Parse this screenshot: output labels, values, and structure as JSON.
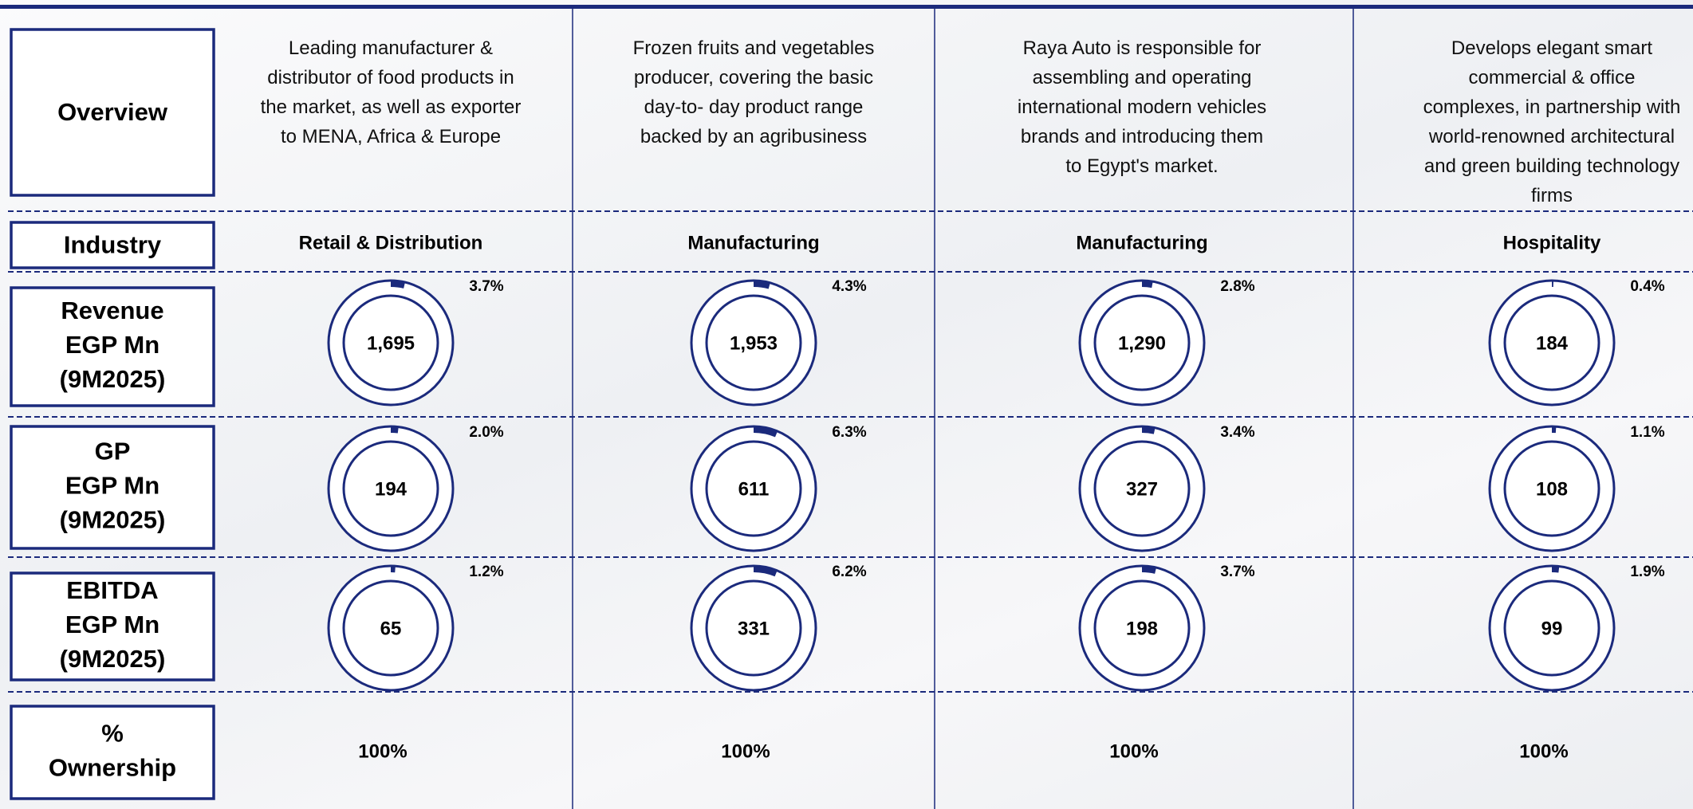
{
  "row_labels": {
    "overview": "Overview",
    "industry": "Industry",
    "revenue": [
      "Revenue",
      "EGP Mn",
      "(9M2025)"
    ],
    "gp": [
      "GP",
      "EGP Mn",
      "(9M2025)"
    ],
    "ebitda": [
      "EBITDA",
      "EGP Mn",
      "(9M2025)"
    ],
    "ownership": [
      "%",
      "Ownership"
    ]
  },
  "columns": [
    {
      "overview": "Leading manufacturer & distributor of food products in the market, as well as exporter to MENA, Africa & Europe",
      "industry": "Retail & Distribution",
      "revenue": {
        "value": "1,695",
        "share": 3.7,
        "share_label": "3.7%"
      },
      "gp": {
        "value": "194",
        "share": 2.0,
        "share_label": "2.0%"
      },
      "ebitda": {
        "value": "65",
        "share": 1.2,
        "share_label": "1.2%"
      },
      "ownership": "100%"
    },
    {
      "overview": "Frozen fruits and  vegetables producer,  covering the basic day-to-  day product range backed  by an agribusiness",
      "industry": "Manufacturing",
      "revenue": {
        "value": "1,953",
        "share": 4.3,
        "share_label": "4.3%"
      },
      "gp": {
        "value": "611",
        "share": 6.3,
        "share_label": "6.3%"
      },
      "ebitda": {
        "value": "331",
        "share": 6.2,
        "share_label": "6.2%"
      },
      "ownership": "100%"
    },
    {
      "overview": "Raya Auto is responsible for assembling and operating international modern vehicles brands and introducing them to Egypt's market.",
      "industry": "Manufacturing",
      "revenue": {
        "value": "1,290",
        "share": 2.8,
        "share_label": "2.8%"
      },
      "gp": {
        "value": "327",
        "share": 3.4,
        "share_label": "3.4%"
      },
      "ebitda": {
        "value": "198",
        "share": 3.7,
        "share_label": "3.7%"
      },
      "ownership": "100%"
    },
    {
      "overview": "Develops elegant smart commercial & office complexes, in partnership with world-renowned architectural and green building technology firms",
      "industry": "Hospitality",
      "revenue": {
        "value": "184",
        "share": 0.4,
        "share_label": "0.4%"
      },
      "gp": {
        "value": "108",
        "share": 1.1,
        "share_label": "1.1%"
      },
      "ebitda": {
        "value": "99",
        "share": 1.9,
        "share_label": "1.9%"
      },
      "ownership": "100%"
    }
  ]
}
